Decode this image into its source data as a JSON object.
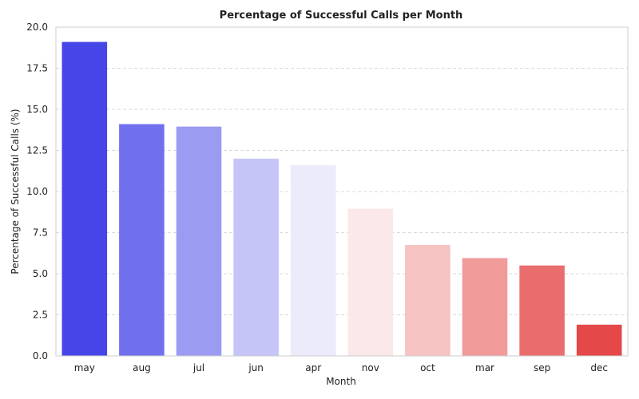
{
  "chart_data": {
    "type": "bar",
    "title": "Percentage of Successful Calls per Month",
    "xlabel": "Month",
    "ylabel": "Percentage of Successful Calls (%)",
    "categories": [
      "may",
      "aug",
      "jul",
      "jun",
      "apr",
      "nov",
      "oct",
      "mar",
      "sep",
      "dec"
    ],
    "values": [
      19.1,
      14.1,
      13.95,
      12.0,
      11.6,
      8.95,
      6.75,
      5.95,
      5.5,
      1.9
    ],
    "ylim": [
      0,
      20
    ],
    "yticks": [
      "0.0",
      "2.5",
      "5.0",
      "7.5",
      "10.0",
      "12.5",
      "15.0",
      "17.5",
      "20.0"
    ],
    "grid": true,
    "colors": [
      "#4646e8",
      "#7070ef",
      "#9b9bf2",
      "#c5c5f7",
      "#ebebfb",
      "#fbe8e8",
      "#f6c3c3",
      "#f09a9a",
      "#ea6d6d",
      "#e44848"
    ]
  }
}
